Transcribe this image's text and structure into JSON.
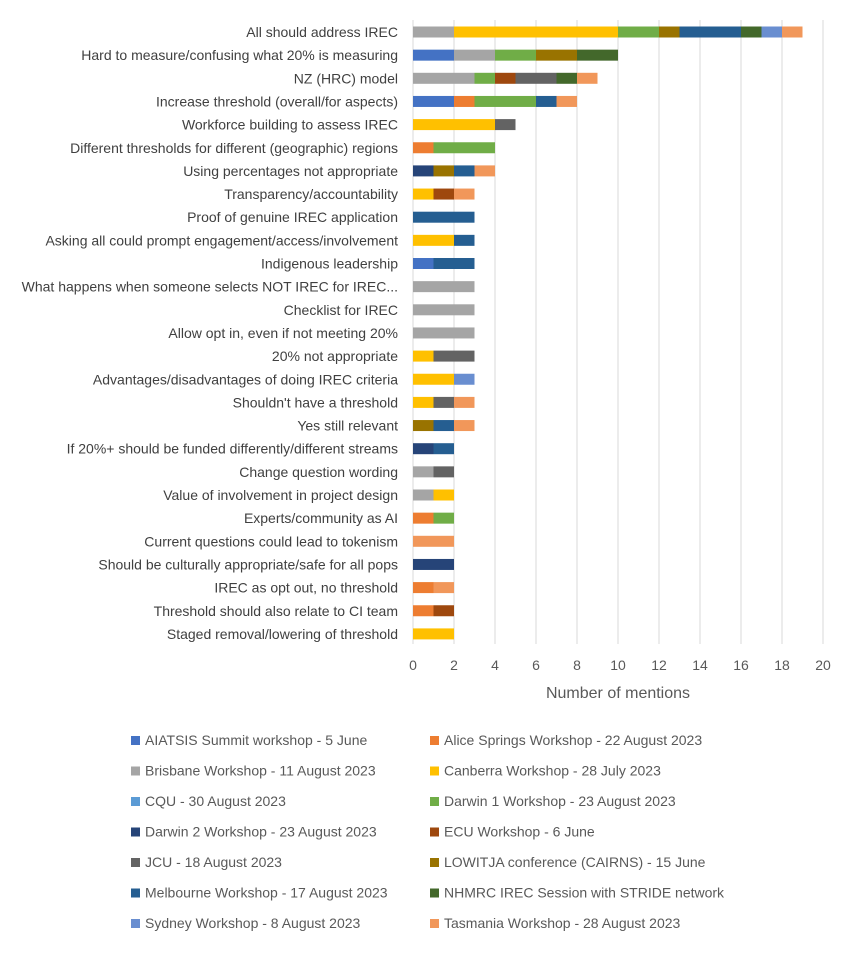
{
  "chart_data": {
    "type": "bar",
    "orientation": "horizontal",
    "stacked": true,
    "title": "",
    "xlabel": "Number of mentions",
    "ylabel": "",
    "xlim": [
      0,
      20
    ],
    "x_ticks": [
      0,
      2,
      4,
      6,
      8,
      10,
      12,
      14,
      16,
      18,
      20
    ],
    "grid": true,
    "legend_position": "bottom",
    "categories": [
      "All should address IREC",
      "Hard to measure/confusing what 20% is measuring",
      "NZ (HRC) model",
      "Increase threshold (overall/for aspects)",
      "Workforce building to assess IREC",
      "Different thresholds for different (geographic) regions",
      "Using percentages not appropriate",
      "Transparency/accountability",
      "Proof of genuine IREC application",
      "Asking all could prompt engagement/access/involvement",
      "Indigenous leadership",
      "What happens when someone selects NOT IREC for IREC...",
      "Checklist for IREC",
      "Allow opt in, even if not meeting 20%",
      "20% not appropriate",
      "Advantages/disadvantages of doing IREC criteria",
      "Shouldn't have a threshold",
      "Yes still relevant",
      "If 20%+ should be funded differently/different streams",
      "Change question wording",
      "Value of involvement in project design",
      "Experts/community as AI",
      "Current questions could lead to tokenism",
      "Should be culturally appropriate/safe for all pops",
      "IREC as opt out, no threshold",
      "Threshold should also relate to CI team",
      "Staged removal/lowering of threshold"
    ],
    "series": [
      {
        "name": "AIATSIS Summit workshop - 5 June",
        "color": "#4472C4",
        "values": [
          0,
          2,
          0,
          2,
          0,
          0,
          0,
          0,
          0,
          0,
          1,
          0,
          0,
          0,
          0,
          0,
          0,
          0,
          0,
          0,
          0,
          0,
          0,
          0,
          0,
          0,
          0
        ]
      },
      {
        "name": "Alice Springs Workshop - 22 August 2023",
        "color": "#ED7D31",
        "values": [
          0,
          0,
          0,
          1,
          0,
          1,
          0,
          0,
          0,
          0,
          0,
          0,
          0,
          0,
          0,
          0,
          0,
          0,
          0,
          0,
          0,
          1,
          0,
          0,
          1,
          1,
          0
        ]
      },
      {
        "name": "Brisbane Workshop - 11 August 2023",
        "color": "#A5A5A5",
        "values": [
          2,
          2,
          3,
          0,
          0,
          0,
          0,
          0,
          0,
          0,
          0,
          3,
          3,
          3,
          0,
          0,
          0,
          0,
          0,
          1,
          1,
          0,
          0,
          0,
          0,
          0,
          0
        ]
      },
      {
        "name": "Canberra Workshop - 28 July 2023",
        "color": "#FFC000",
        "values": [
          8,
          0,
          0,
          0,
          4,
          0,
          0,
          1,
          0,
          2,
          0,
          0,
          0,
          0,
          1,
          2,
          1,
          0,
          0,
          0,
          1,
          0,
          0,
          0,
          0,
          0,
          2
        ]
      },
      {
        "name": "CQU - 30 August 2023",
        "color": "#5B9BD5",
        "values": [
          0,
          0,
          0,
          0,
          0,
          0,
          0,
          0,
          0,
          0,
          0,
          0,
          0,
          0,
          0,
          0,
          0,
          0,
          0,
          0,
          0,
          0,
          0,
          0,
          0,
          0,
          0
        ]
      },
      {
        "name": "Darwin 1 Workshop - 23 August 2023",
        "color": "#70AD47",
        "values": [
          2,
          2,
          1,
          3,
          0,
          3,
          0,
          0,
          0,
          0,
          0,
          0,
          0,
          0,
          0,
          0,
          0,
          0,
          0,
          0,
          0,
          1,
          0,
          0,
          0,
          0,
          0
        ]
      },
      {
        "name": "Darwin 2 Workshop - 23 August 2023",
        "color": "#264478",
        "values": [
          0,
          0,
          0,
          0,
          0,
          0,
          1,
          0,
          0,
          0,
          0,
          0,
          0,
          0,
          0,
          0,
          0,
          0,
          1,
          0,
          0,
          0,
          0,
          2,
          0,
          0,
          0
        ]
      },
      {
        "name": "ECU Workshop - 6 June",
        "color": "#9E480E",
        "values": [
          0,
          0,
          1,
          0,
          0,
          0,
          0,
          1,
          0,
          0,
          0,
          0,
          0,
          0,
          0,
          0,
          0,
          0,
          0,
          0,
          0,
          0,
          0,
          0,
          0,
          1,
          0
        ]
      },
      {
        "name": "JCU - 18 August 2023",
        "color": "#636363",
        "values": [
          0,
          0,
          2,
          0,
          1,
          0,
          0,
          0,
          0,
          0,
          0,
          0,
          0,
          0,
          2,
          0,
          1,
          0,
          0,
          1,
          0,
          0,
          0,
          0,
          0,
          0,
          0
        ]
      },
      {
        "name": "LOWITJA conference (CAIRNS) - 15 June",
        "color": "#997300",
        "values": [
          1,
          2,
          0,
          0,
          0,
          0,
          1,
          0,
          0,
          0,
          0,
          0,
          0,
          0,
          0,
          0,
          0,
          1,
          0,
          0,
          0,
          0,
          0,
          0,
          0,
          0,
          0
        ]
      },
      {
        "name": "Melbourne Workshop - 17 August 2023",
        "color": "#255E91",
        "values": [
          3,
          0,
          0,
          1,
          0,
          0,
          1,
          0,
          3,
          1,
          2,
          0,
          0,
          0,
          0,
          0,
          0,
          1,
          1,
          0,
          0,
          0,
          0,
          0,
          0,
          0,
          0
        ]
      },
      {
        "name": "NHMRC IREC Session with STRIDE network",
        "color": "#43682B",
        "values": [
          1,
          2,
          1,
          0,
          0,
          0,
          0,
          0,
          0,
          0,
          0,
          0,
          0,
          0,
          0,
          0,
          0,
          0,
          0,
          0,
          0,
          0,
          0,
          0,
          0,
          0,
          0
        ]
      },
      {
        "name": "Sydney Workshop - 8 August 2023",
        "color": "#698ED0",
        "values": [
          1,
          0,
          0,
          0,
          0,
          0,
          0,
          0,
          0,
          0,
          0,
          0,
          0,
          0,
          0,
          1,
          0,
          0,
          0,
          0,
          0,
          0,
          0,
          0,
          0,
          0,
          0
        ]
      },
      {
        "name": "Tasmania Workshop - 28 August 2023",
        "color": "#F1975A",
        "values": [
          1,
          0,
          1,
          1,
          0,
          0,
          1,
          1,
          0,
          0,
          0,
          0,
          0,
          0,
          0,
          0,
          1,
          1,
          0,
          0,
          0,
          0,
          2,
          0,
          1,
          0,
          0
        ]
      }
    ]
  }
}
